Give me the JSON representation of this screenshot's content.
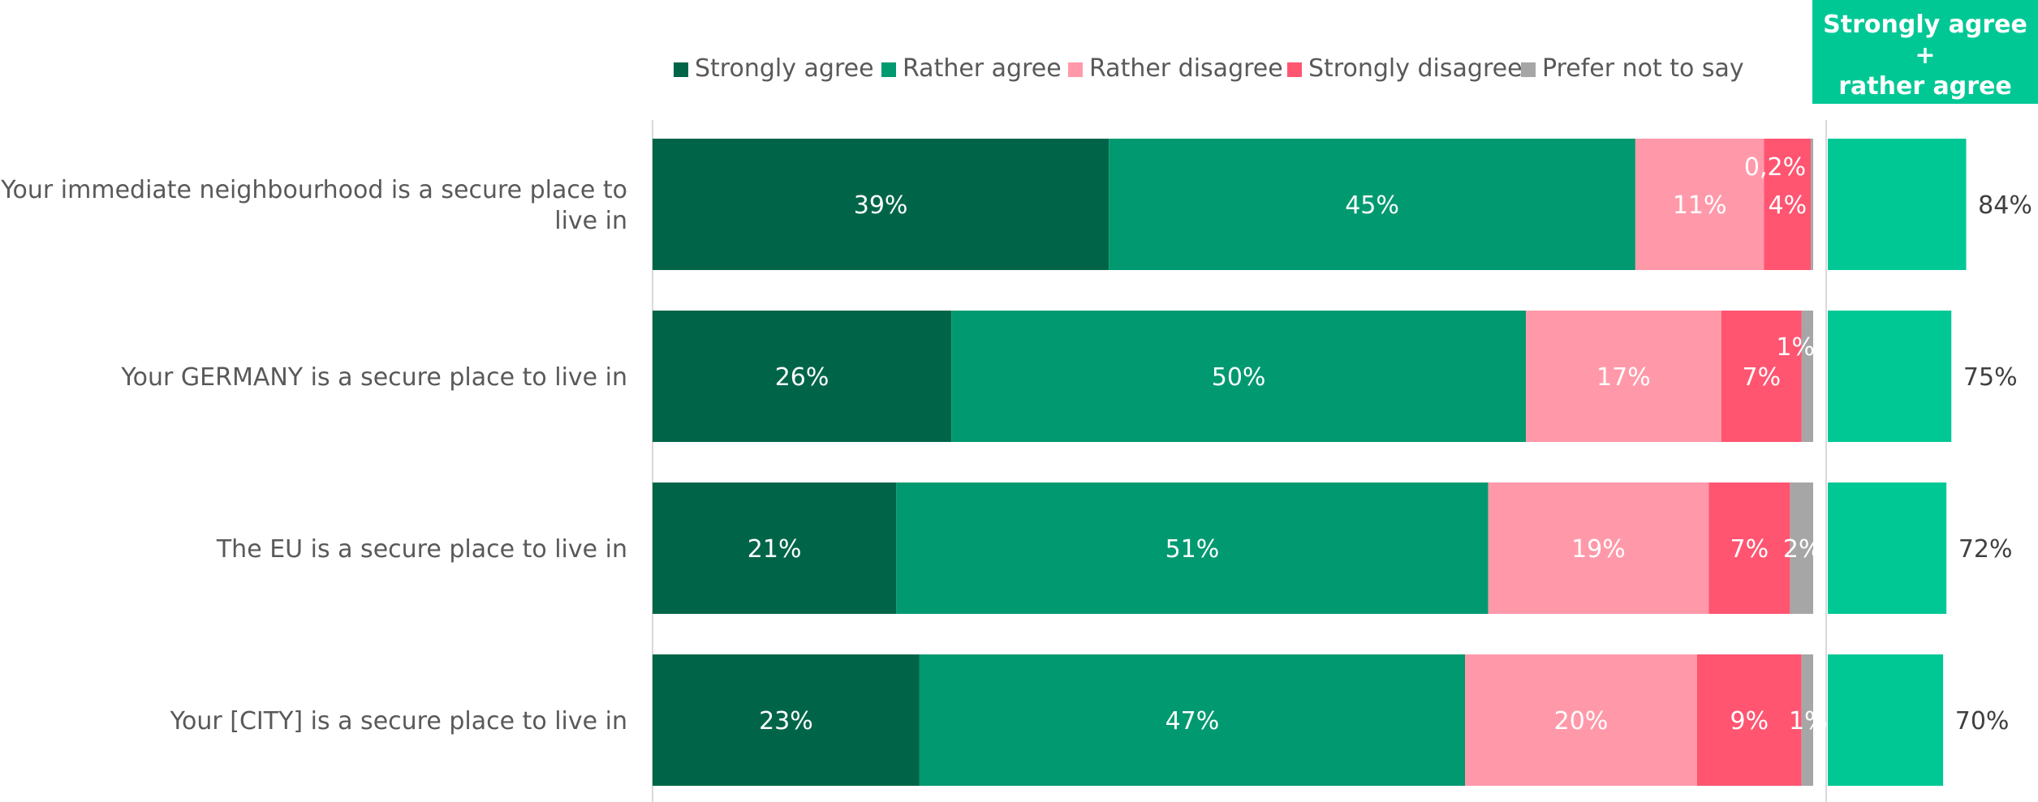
{
  "chart_data": {
    "type": "bar",
    "orientation": "horizontal-stacked",
    "categories": [
      "Your immediate neighbourhood is a secure place to live in",
      "Your GERMANY is a secure place to live in",
      "The EU is a secure place to live in",
      "Your [CITY] is a secure place to live in"
    ],
    "category_lines": [
      [
        "Your immediate neighbourhood is a secure place to",
        "live in"
      ],
      [
        "Your GERMANY is a secure place to live in"
      ],
      [
        "The EU is a secure place to live in"
      ],
      [
        "Your [CITY] is a secure place to live in"
      ]
    ],
    "series": [
      {
        "name": "Strongly agree",
        "color": "#006548",
        "values": [
          39,
          26,
          21,
          23
        ],
        "labels": [
          "39%",
          "26%",
          "21%",
          "23%"
        ]
      },
      {
        "name": "Rather agree",
        "color": "#009970",
        "values": [
          45,
          50,
          51,
          47
        ],
        "labels": [
          "45%",
          "50%",
          "51%",
          "47%"
        ]
      },
      {
        "name": "Rather disagree",
        "color": "#ff99a9",
        "values": [
          11,
          17,
          19,
          20
        ],
        "labels": [
          "11%",
          "17%",
          "19%",
          "20%"
        ]
      },
      {
        "name": "Strongly disagree",
        "color": "#ff5571",
        "values": [
          4,
          7,
          7,
          9
        ],
        "labels": [
          "4%",
          "7%",
          "7%",
          "9%"
        ]
      },
      {
        "name": "Prefer not to say",
        "color": "#a6a6a6",
        "values": [
          0.2,
          1,
          2,
          1
        ],
        "labels": [
          "0,2%",
          "1%",
          "2%",
          "1%"
        ]
      }
    ],
    "net": {
      "title_lines": [
        "Strongly agree",
        "+",
        "rather agree"
      ],
      "color": "#00c895",
      "values": [
        84,
        75,
        72,
        70
      ],
      "labels": [
        "84%",
        "75%",
        "72%",
        "70%"
      ]
    },
    "legend_position": "top",
    "xlim": [
      0,
      100
    ],
    "grid": false
  }
}
